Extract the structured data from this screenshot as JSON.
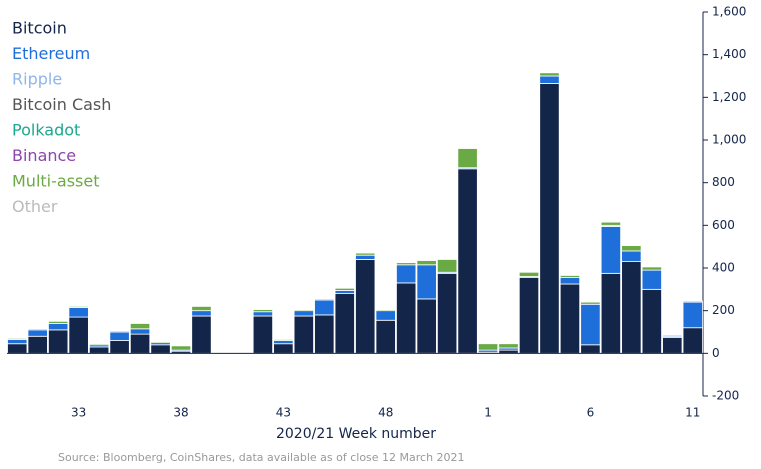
{
  "chart_data": {
    "type": "stacked_bar",
    "x_label": "2020/21 Week number",
    "source": "Source: Bloomberg, CoinShares, data available as of close 12 March 2021",
    "categories": [
      null,
      null,
      null,
      "33",
      null,
      null,
      null,
      null,
      "38",
      null,
      null,
      null,
      null,
      "43",
      null,
      null,
      null,
      null,
      "48",
      null,
      null,
      null,
      null,
      "1",
      null,
      null,
      null,
      null,
      "6",
      null,
      null,
      null,
      null,
      "11"
    ],
    "series": [
      {
        "name": "Bitcoin",
        "color": "#14254a",
        "values": [
          45,
          80,
          110,
          170,
          30,
          60,
          90,
          40,
          10,
          175,
          3,
          2,
          175,
          45,
          175,
          180,
          280,
          440,
          155,
          330,
          255,
          375,
          865,
          5,
          15,
          355,
          1265,
          325,
          40,
          375,
          430,
          300,
          75,
          120
        ]
      },
      {
        "name": "Ethereum",
        "color": "#1e6fd9",
        "values": [
          20,
          30,
          30,
          45,
          10,
          40,
          25,
          10,
          5,
          25,
          3,
          2,
          20,
          15,
          25,
          70,
          15,
          20,
          45,
          85,
          160,
          5,
          5,
          10,
          10,
          5,
          35,
          30,
          190,
          220,
          50,
          90,
          5,
          120
        ]
      },
      {
        "name": "Ripple",
        "color": "#8fb6e8",
        "values": [
          0,
          0,
          0,
          0,
          0,
          0,
          0,
          0,
          0,
          0,
          0,
          0,
          0,
          0,
          0,
          0,
          0,
          0,
          0,
          0,
          0,
          0,
          0,
          0,
          0,
          0,
          0,
          0,
          0,
          0,
          0,
          0,
          0,
          0
        ]
      },
      {
        "name": "Bitcoin Cash",
        "color": "#555555",
        "values": [
          0,
          0,
          0,
          0,
          0,
          0,
          0,
          0,
          0,
          0,
          0,
          0,
          0,
          0,
          0,
          0,
          0,
          0,
          0,
          0,
          0,
          0,
          0,
          0,
          0,
          0,
          0,
          0,
          0,
          0,
          0,
          0,
          0,
          0
        ]
      },
      {
        "name": "Polkadot",
        "color": "#1aa88f",
        "values": [
          0,
          0,
          0,
          0,
          0,
          0,
          0,
          0,
          0,
          0,
          0,
          0,
          0,
          0,
          0,
          0,
          0,
          0,
          0,
          0,
          0,
          0,
          0,
          0,
          0,
          0,
          0,
          0,
          0,
          5,
          0,
          0,
          0,
          0
        ]
      },
      {
        "name": "Binance",
        "color": "#8e44ad",
        "values": [
          0,
          0,
          0,
          0,
          0,
          0,
          0,
          0,
          0,
          0,
          0,
          0,
          0,
          0,
          -3,
          0,
          0,
          0,
          0,
          0,
          -3,
          -3,
          -3,
          0,
          0,
          0,
          0,
          0,
          0,
          0,
          0,
          0,
          0,
          0
        ]
      },
      {
        "name": "Multi-asset",
        "color": "#6aaa45",
        "values": [
          5,
          5,
          10,
          5,
          5,
          5,
          25,
          5,
          20,
          20,
          0,
          0,
          10,
          5,
          5,
          5,
          10,
          10,
          5,
          10,
          20,
          60,
          90,
          30,
          20,
          20,
          15,
          10,
          10,
          15,
          25,
          15,
          5,
          5
        ]
      },
      {
        "name": "Other",
        "color": "#bbbbbb",
        "values": [
          0,
          0,
          0,
          0,
          0,
          0,
          0,
          0,
          0,
          0,
          0,
          0,
          0,
          0,
          0,
          0,
          0,
          0,
          0,
          0,
          0,
          0,
          0,
          0,
          0,
          0,
          0,
          0,
          0,
          0,
          0,
          0,
          0,
          0
        ]
      }
    ],
    "ylim": [
      -200,
      1600
    ],
    "yticks": [
      -200,
      0,
      200,
      400,
      600,
      800,
      {
        "value": 1000,
        "label": "1,000"
      },
      {
        "value": 1200,
        "label": "1,200"
      },
      {
        "value": 1400,
        "label": "1,400"
      },
      {
        "value": 1600,
        "label": "1,600"
      }
    ]
  }
}
